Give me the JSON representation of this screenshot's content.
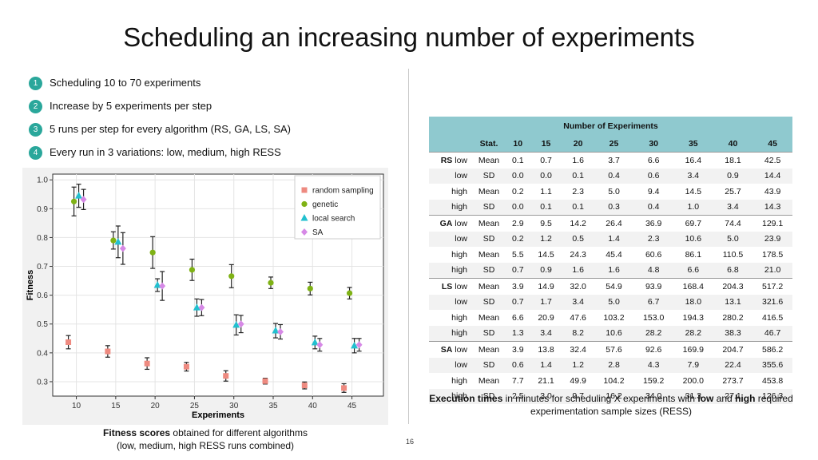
{
  "title": "Scheduling an increasing number of experiments",
  "bullets": [
    {
      "num": "1",
      "text": "Scheduling 10 to 70 experiments"
    },
    {
      "num": "2",
      "text": "Increase by 5 experiments per step"
    },
    {
      "num": "3",
      "text": "5 runs per step for every algorithm (RS, GA, LS, SA)"
    },
    {
      "num": "4",
      "text": "Every run in 3 variations: low, medium, high RESS"
    }
  ],
  "left_caption": {
    "bold": "Fitness scores",
    "rest": " obtained for different algorithms",
    "line2": "(low, medium, high RESS runs combined)"
  },
  "right_caption": {
    "bold1": "Execution times",
    "mid": " in minutes for scheduling X experiments with ",
    "bold2": "low",
    "and": " and ",
    "bold3": "high",
    "rest": " required",
    "line2": "experimentation sample sizes (RESS)"
  },
  "page_number": "16",
  "colors": {
    "accent": "#2aa79b",
    "header": "#8fc9cf",
    "rs": "#ee8a80",
    "ga": "#7fb215",
    "ls": "#22c0cf",
    "sa": "#d689e6"
  },
  "chart_data": {
    "type": "scatter",
    "xlabel": "Experiments",
    "ylabel": "Fitness",
    "x": [
      10,
      15,
      20,
      25,
      30,
      35,
      40,
      45
    ],
    "xlim": [
      7,
      49
    ],
    "ylim": [
      0.25,
      1.02
    ],
    "xticks": [
      "10",
      "15",
      "20",
      "25",
      "30",
      "35",
      "40",
      "45"
    ],
    "yticks": [
      "0.3",
      "0.4",
      "0.5",
      "0.6",
      "0.7",
      "0.8",
      "0.9",
      "1.0"
    ],
    "grid": true,
    "legend_position": "top-right",
    "series": [
      {
        "name": "random sampling",
        "marker": "square",
        "color": "#ee8a80",
        "values": [
          0.437,
          0.405,
          0.363,
          0.352,
          0.32,
          0.302,
          0.287,
          0.278
        ],
        "err": [
          0.023,
          0.02,
          0.02,
          0.015,
          0.018,
          0.01,
          0.012,
          0.015
        ]
      },
      {
        "name": "genetic",
        "marker": "circle",
        "color": "#7fb215",
        "values": [
          0.925,
          0.79,
          0.748,
          0.688,
          0.666,
          0.643,
          0.623,
          0.607
        ],
        "err": [
          0.05,
          0.03,
          0.055,
          0.037,
          0.04,
          0.02,
          0.022,
          0.02
        ]
      },
      {
        "name": "local search",
        "marker": "triangle",
        "color": "#22c0cf",
        "values": [
          0.945,
          0.785,
          0.635,
          0.557,
          0.497,
          0.477,
          0.436,
          0.425
        ],
        "err": [
          0.04,
          0.055,
          0.022,
          0.03,
          0.035,
          0.025,
          0.022,
          0.025
        ]
      },
      {
        "name": "SA",
        "marker": "diamond",
        "color": "#d689e6",
        "values": [
          0.932,
          0.762,
          0.632,
          0.557,
          0.5,
          0.473,
          0.428,
          0.428
        ],
        "err": [
          0.035,
          0.055,
          0.05,
          0.028,
          0.03,
          0.025,
          0.022,
          0.022
        ]
      }
    ]
  },
  "table": {
    "title": "Number of Experiments",
    "columns": [
      "Stat.",
      "10",
      "15",
      "20",
      "25",
      "30",
      "35",
      "40",
      "45"
    ],
    "rows": [
      {
        "algo": "RS",
        "level": "low",
        "stat": "Mean",
        "values": [
          "0.1",
          "0.7",
          "1.6",
          "3.7",
          "6.6",
          "16.4",
          "18.1",
          "42.5"
        ]
      },
      {
        "algo": "",
        "level": "low",
        "stat": "SD",
        "values": [
          "0.0",
          "0.0",
          "0.1",
          "0.4",
          "0.6",
          "3.4",
          "0.9",
          "14.4"
        ]
      },
      {
        "algo": "",
        "level": "high",
        "stat": "Mean",
        "values": [
          "0.2",
          "1.1",
          "2.3",
          "5.0",
          "9.4",
          "14.5",
          "25.7",
          "43.9"
        ]
      },
      {
        "algo": "",
        "level": "high",
        "stat": "SD",
        "values": [
          "0.0",
          "0.1",
          "0.1",
          "0.3",
          "0.4",
          "1.0",
          "3.4",
          "14.3"
        ]
      },
      {
        "algo": "GA",
        "level": "low",
        "stat": "Mean",
        "values": [
          "2.9",
          "9.5",
          "14.2",
          "26.4",
          "36.9",
          "69.7",
          "74.4",
          "129.1"
        ]
      },
      {
        "algo": "",
        "level": "low",
        "stat": "SD",
        "values": [
          "0.2",
          "1.2",
          "0.5",
          "1.4",
          "2.3",
          "10.6",
          "5.0",
          "23.9"
        ]
      },
      {
        "algo": "",
        "level": "high",
        "stat": "Mean",
        "values": [
          "5.5",
          "14.5",
          "24.3",
          "45.4",
          "60.6",
          "86.1",
          "110.5",
          "178.5"
        ]
      },
      {
        "algo": "",
        "level": "high",
        "stat": "SD",
        "values": [
          "0.7",
          "0.9",
          "1.6",
          "1.6",
          "4.8",
          "6.6",
          "6.8",
          "21.0"
        ]
      },
      {
        "algo": "LS",
        "level": "low",
        "stat": "Mean",
        "values": [
          "3.9",
          "14.9",
          "32.0",
          "54.9",
          "93.9",
          "168.4",
          "204.3",
          "517.2"
        ]
      },
      {
        "algo": "",
        "level": "low",
        "stat": "SD",
        "values": [
          "0.7",
          "1.7",
          "3.4",
          "5.0",
          "6.7",
          "18.0",
          "13.1",
          "321.6"
        ]
      },
      {
        "algo": "",
        "level": "high",
        "stat": "Mean",
        "values": [
          "6.6",
          "20.9",
          "47.6",
          "103.2",
          "153.0",
          "194.3",
          "280.2",
          "416.5"
        ]
      },
      {
        "algo": "",
        "level": "high",
        "stat": "SD",
        "values": [
          "1.3",
          "3.4",
          "8.2",
          "10.6",
          "28.2",
          "28.2",
          "38.3",
          "46.7"
        ]
      },
      {
        "algo": "SA",
        "level": "low",
        "stat": "Mean",
        "values": [
          "3.9",
          "13.8",
          "32.4",
          "57.6",
          "92.6",
          "169.9",
          "204.7",
          "586.2"
        ]
      },
      {
        "algo": "",
        "level": "low",
        "stat": "SD",
        "values": [
          "0.6",
          "1.4",
          "1.2",
          "2.8",
          "4.3",
          "7.9",
          "22.4",
          "355.6"
        ]
      },
      {
        "algo": "",
        "level": "high",
        "stat": "Mean",
        "values": [
          "7.7",
          "21.1",
          "49.9",
          "104.2",
          "159.2",
          "200.0",
          "273.7",
          "453.8"
        ]
      },
      {
        "algo": "",
        "level": "high",
        "stat": "SD",
        "values": [
          "2.5",
          "3.0",
          "9.7",
          "16.2",
          "34.0",
          "31.3",
          "27.1",
          "126.3"
        ]
      }
    ]
  }
}
